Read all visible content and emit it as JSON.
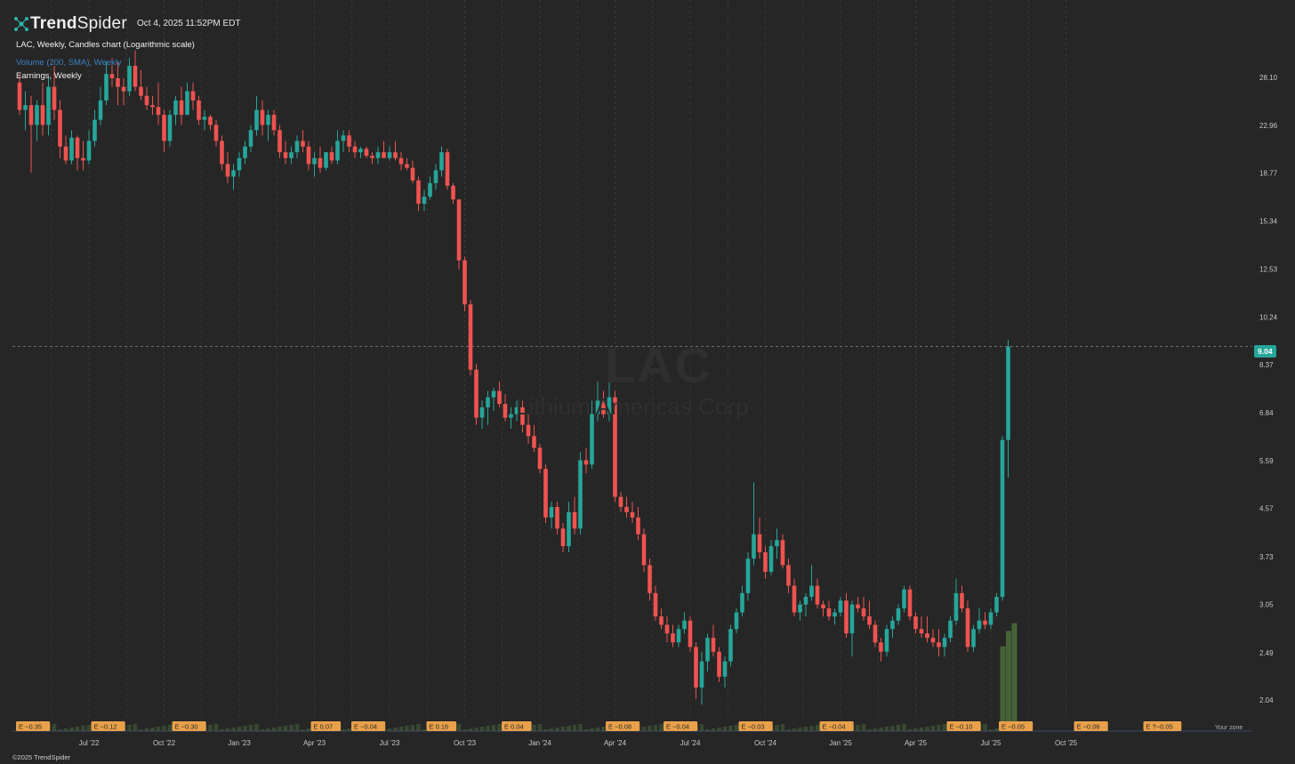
{
  "header": {
    "brand_bold": "Trend",
    "brand_light": "Spider",
    "timestamp": "Oct 4, 2025 11:52PM EDT"
  },
  "legend": {
    "main": "LAC, Weekly, Candles chart (Logarithmic scale)",
    "volume": "Volume (200, SMA), Weekly",
    "earnings": "Earnings, Weekly"
  },
  "watermark": {
    "symbol": "LAC",
    "name": "Lithium Americas Corp"
  },
  "copyright": "©2025 TrendSpider",
  "current_price": "9.04",
  "zone_text": "Your zone",
  "colors": {
    "background": "#262626",
    "up": "#26a69a",
    "down": "#ef5350",
    "grid": "#5a4632",
    "axis_text": "#c8c8c8",
    "earnings_badge": "#e8a04a",
    "volume": "#4a6a3a"
  },
  "chart_data": {
    "type": "candlestick",
    "title": "LAC, Weekly, Candles chart (Logarithmic scale)",
    "y_scale": "log",
    "y_ticks": [
      2.04,
      2.49,
      3.05,
      3.73,
      4.57,
      5.59,
      6.84,
      8.37,
      10.24,
      12.53,
      15.34,
      18.77,
      22.96,
      28.1
    ],
    "ylim": [
      1.9,
      33
    ],
    "x_ticks": [
      "Jul '22",
      "Oct '22",
      "Jan '23",
      "Apr '23",
      "Jul '23",
      "Oct '23",
      "Jan '24",
      "Apr '24",
      "Jul '24",
      "Oct '24",
      "Jan '25",
      "Apr '25",
      "Jul '25",
      "Oct '25"
    ],
    "x_tick_week_index": [
      12,
      25,
      38,
      51,
      64,
      77,
      90,
      103,
      116,
      129,
      142,
      155,
      168,
      181
    ],
    "candles": [
      [
        27.5,
        28.5,
        24.0,
        24.5
      ],
      [
        24.5,
        26.5,
        22.5,
        25.0
      ],
      [
        25.0,
        26.0,
        18.8,
        23.0
      ],
      [
        23.0,
        25.5,
        21.5,
        25.0
      ],
      [
        25.0,
        27.5,
        22.0,
        23.0
      ],
      [
        23.0,
        28.0,
        22.0,
        27.0
      ],
      [
        27.0,
        29.5,
        23.5,
        24.5
      ],
      [
        24.5,
        25.5,
        20.0,
        21.0
      ],
      [
        21.0,
        22.0,
        19.5,
        19.8
      ],
      [
        19.8,
        22.5,
        19.5,
        21.8
      ],
      [
        21.8,
        22.0,
        19.0,
        20.0
      ],
      [
        20.0,
        21.5,
        19.0,
        19.8
      ],
      [
        19.8,
        22.5,
        19.5,
        21.5
      ],
      [
        21.5,
        24.5,
        21.0,
        23.5
      ],
      [
        23.5,
        27.0,
        23.0,
        25.5
      ],
      [
        25.5,
        30.0,
        25.0,
        28.5
      ],
      [
        28.5,
        30.5,
        27.0,
        28.0
      ],
      [
        28.0,
        30.0,
        25.0,
        27.0
      ],
      [
        27.0,
        28.0,
        25.0,
        26.5
      ],
      [
        26.5,
        30.5,
        26.0,
        29.5
      ],
      [
        29.5,
        31.5,
        26.5,
        27.0
      ],
      [
        27.0,
        29.0,
        25.5,
        26.0
      ],
      [
        26.0,
        27.0,
        24.5,
        25.0
      ],
      [
        25.0,
        26.0,
        24.0,
        24.8
      ],
      [
        24.8,
        27.5,
        23.0,
        24.0
      ],
      [
        24.0,
        24.5,
        20.5,
        21.5
      ],
      [
        21.5,
        24.5,
        21.0,
        24.0
      ],
      [
        24.0,
        26.0,
        23.0,
        25.5
      ],
      [
        25.5,
        27.0,
        23.0,
        24.0
      ],
      [
        24.0,
        27.5,
        24.0,
        26.5
      ],
      [
        26.5,
        27.5,
        24.5,
        25.5
      ],
      [
        25.5,
        26.0,
        23.0,
        23.5
      ],
      [
        23.5,
        24.5,
        22.5,
        23.8
      ],
      [
        23.8,
        24.0,
        22.5,
        23.0
      ],
      [
        23.0,
        23.5,
        21.0,
        21.5
      ],
      [
        21.5,
        22.0,
        19.0,
        19.5
      ],
      [
        19.5,
        20.5,
        18.0,
        18.5
      ],
      [
        18.5,
        19.5,
        17.5,
        19.0
      ],
      [
        19.0,
        20.5,
        18.5,
        20.0
      ],
      [
        20.0,
        21.5,
        19.5,
        21.0
      ],
      [
        21.0,
        23.0,
        20.5,
        22.5
      ],
      [
        22.5,
        26.0,
        22.0,
        24.5
      ],
      [
        24.5,
        25.5,
        22.0,
        23.0
      ],
      [
        23.0,
        24.5,
        21.5,
        24.0
      ],
      [
        24.0,
        24.5,
        22.0,
        22.5
      ],
      [
        22.5,
        23.0,
        20.0,
        20.5
      ],
      [
        20.5,
        21.5,
        19.5,
        20.0
      ],
      [
        20.0,
        21.0,
        19.5,
        20.5
      ],
      [
        20.5,
        22.0,
        20.0,
        21.5
      ],
      [
        21.5,
        22.5,
        20.5,
        21.0
      ],
      [
        21.0,
        21.5,
        19.0,
        19.5
      ],
      [
        19.5,
        20.5,
        18.5,
        20.0
      ],
      [
        20.0,
        21.0,
        18.8,
        19.2
      ],
      [
        19.2,
        20.5,
        19.0,
        20.5
      ],
      [
        20.5,
        21.0,
        19.5,
        19.8
      ],
      [
        19.8,
        22.5,
        19.5,
        21.5
      ],
      [
        21.5,
        22.5,
        20.5,
        22.0
      ],
      [
        22.0,
        22.5,
        20.5,
        21.0
      ],
      [
        21.0,
        21.5,
        20.0,
        20.5
      ],
      [
        20.5,
        21.0,
        20.0,
        20.8
      ],
      [
        20.8,
        21.0,
        20.0,
        20.2
      ],
      [
        20.2,
        20.5,
        19.5,
        20.0
      ],
      [
        20.0,
        21.0,
        19.5,
        20.5
      ],
      [
        20.5,
        21.5,
        20.0,
        20.0
      ],
      [
        20.0,
        21.0,
        19.8,
        20.5
      ],
      [
        20.5,
        21.5,
        19.8,
        20.0
      ],
      [
        20.0,
        20.5,
        19.0,
        19.5
      ],
      [
        19.5,
        20.0,
        19.0,
        19.2
      ],
      [
        19.2,
        19.8,
        18.0,
        18.2
      ],
      [
        18.2,
        18.5,
        16.0,
        16.5
      ],
      [
        16.5,
        17.5,
        16.0,
        17.0
      ],
      [
        17.0,
        18.5,
        16.8,
        18.0
      ],
      [
        18.0,
        19.5,
        17.5,
        19.0
      ],
      [
        19.0,
        21.0,
        18.5,
        20.5
      ],
      [
        20.5,
        20.8,
        17.5,
        17.8
      ],
      [
        17.8,
        18.0,
        16.5,
        16.8
      ],
      [
        16.8,
        16.8,
        12.5,
        13.0
      ],
      [
        13.0,
        13.2,
        10.5,
        10.8
      ],
      [
        10.8,
        11.0,
        8.0,
        8.2
      ],
      [
        8.2,
        8.4,
        6.5,
        6.7
      ],
      [
        6.7,
        7.2,
        6.4,
        7.0
      ],
      [
        7.0,
        7.5,
        6.5,
        7.3
      ],
      [
        7.3,
        7.6,
        6.9,
        7.5
      ],
      [
        7.5,
        7.8,
        7.0,
        7.1
      ],
      [
        7.1,
        7.4,
        6.6,
        6.7
      ],
      [
        6.7,
        7.0,
        6.4,
        6.8
      ],
      [
        6.8,
        7.2,
        6.6,
        7.0
      ],
      [
        7.0,
        7.2,
        6.3,
        6.5
      ],
      [
        6.5,
        6.8,
        6.0,
        6.2
      ],
      [
        6.2,
        6.5,
        5.8,
        5.9
      ],
      [
        5.9,
        6.0,
        5.3,
        5.4
      ],
      [
        5.4,
        5.5,
        4.3,
        4.4
      ],
      [
        4.4,
        4.7,
        4.2,
        4.6
      ],
      [
        4.6,
        4.7,
        4.1,
        4.2
      ],
      [
        4.2,
        4.3,
        3.8,
        3.9
      ],
      [
        3.9,
        4.7,
        3.8,
        4.5
      ],
      [
        4.5,
        4.8,
        4.1,
        4.2
      ],
      [
        4.2,
        5.8,
        4.1,
        5.6
      ],
      [
        5.6,
        5.9,
        5.3,
        5.5
      ],
      [
        5.5,
        7.2,
        5.4,
        6.8
      ],
      [
        6.8,
        7.8,
        6.6,
        7.2
      ],
      [
        7.2,
        7.5,
        6.7,
        6.8
      ],
      [
        6.8,
        7.9,
        6.6,
        7.3
      ],
      [
        7.3,
        7.5,
        4.7,
        4.8
      ],
      [
        4.8,
        4.9,
        4.5,
        4.6
      ],
      [
        4.6,
        4.8,
        4.4,
        4.5
      ],
      [
        4.5,
        4.7,
        4.3,
        4.4
      ],
      [
        4.4,
        4.6,
        4.0,
        4.1
      ],
      [
        4.1,
        4.2,
        3.5,
        3.6
      ],
      [
        3.6,
        3.7,
        3.1,
        3.2
      ],
      [
        3.2,
        3.3,
        2.85,
        2.9
      ],
      [
        2.9,
        3.0,
        2.75,
        2.8
      ],
      [
        2.8,
        2.9,
        2.6,
        2.7
      ],
      [
        2.7,
        2.8,
        2.55,
        2.6
      ],
      [
        2.6,
        2.8,
        2.55,
        2.75
      ],
      [
        2.75,
        2.95,
        2.7,
        2.85
      ],
      [
        2.85,
        2.9,
        2.5,
        2.55
      ],
      [
        2.55,
        2.6,
        2.05,
        2.15
      ],
      [
        2.15,
        2.5,
        2.0,
        2.4
      ],
      [
        2.4,
        2.7,
        2.3,
        2.65
      ],
      [
        2.65,
        2.8,
        2.45,
        2.5
      ],
      [
        2.5,
        2.55,
        2.2,
        2.25
      ],
      [
        2.25,
        2.45,
        2.15,
        2.4
      ],
      [
        2.4,
        2.8,
        2.35,
        2.75
      ],
      [
        2.75,
        3.0,
        2.7,
        2.95
      ],
      [
        2.95,
        3.3,
        2.9,
        3.2
      ],
      [
        3.2,
        3.8,
        3.1,
        3.7
      ],
      [
        3.7,
        5.1,
        3.6,
        4.1
      ],
      [
        4.1,
        4.4,
        3.7,
        3.8
      ],
      [
        3.8,
        3.9,
        3.4,
        3.5
      ],
      [
        3.5,
        4.0,
        3.45,
        3.9
      ],
      [
        3.9,
        4.2,
        3.7,
        4.0
      ],
      [
        4.0,
        4.1,
        3.55,
        3.6
      ],
      [
        3.6,
        3.7,
        3.2,
        3.3
      ],
      [
        3.3,
        3.4,
        2.9,
        2.95
      ],
      [
        2.95,
        3.1,
        2.85,
        3.05
      ],
      [
        3.05,
        3.2,
        2.9,
        3.15
      ],
      [
        3.15,
        3.6,
        3.1,
        3.3
      ],
      [
        3.3,
        3.4,
        3.0,
        3.05
      ],
      [
        3.05,
        3.1,
        2.9,
        3.0
      ],
      [
        3.0,
        3.1,
        2.85,
        2.9
      ],
      [
        2.9,
        3.0,
        2.8,
        2.95
      ],
      [
        2.95,
        3.15,
        2.9,
        3.1
      ],
      [
        3.1,
        3.2,
        2.65,
        2.7
      ],
      [
        2.7,
        3.1,
        2.45,
        3.05
      ],
      [
        3.05,
        3.15,
        2.95,
        3.0
      ],
      [
        3.0,
        3.15,
        2.85,
        2.9
      ],
      [
        2.9,
        3.1,
        2.75,
        2.8
      ],
      [
        2.8,
        2.85,
        2.55,
        2.6
      ],
      [
        2.6,
        2.65,
        2.4,
        2.5
      ],
      [
        2.5,
        2.8,
        2.45,
        2.75
      ],
      [
        2.75,
        2.9,
        2.65,
        2.85
      ],
      [
        2.85,
        3.05,
        2.8,
        3.0
      ],
      [
        3.0,
        3.3,
        2.95,
        3.25
      ],
      [
        3.25,
        3.3,
        2.85,
        2.9
      ],
      [
        2.9,
        2.95,
        2.7,
        2.75
      ],
      [
        2.75,
        2.9,
        2.65,
        2.7
      ],
      [
        2.7,
        2.9,
        2.6,
        2.65
      ],
      [
        2.65,
        2.75,
        2.55,
        2.6
      ],
      [
        2.6,
        2.75,
        2.45,
        2.55
      ],
      [
        2.55,
        2.7,
        2.45,
        2.65
      ],
      [
        2.65,
        2.9,
        2.6,
        2.85
      ],
      [
        2.85,
        3.4,
        2.8,
        3.2
      ],
      [
        3.2,
        3.3,
        2.95,
        3.0
      ],
      [
        3.0,
        3.1,
        2.5,
        2.55
      ],
      [
        2.55,
        2.8,
        2.5,
        2.75
      ],
      [
        2.75,
        3.0,
        2.7,
        2.85
      ],
      [
        2.85,
        2.95,
        2.75,
        2.8
      ],
      [
        2.8,
        3.0,
        2.75,
        2.95
      ],
      [
        2.95,
        3.2,
        2.9,
        3.15
      ],
      [
        3.15,
        6.2,
        3.1,
        6.1
      ],
      [
        6.1,
        9.3,
        5.2,
        9.04
      ]
    ],
    "volume_values": [
      2.2,
      2.6,
      2.8
    ],
    "earnings": [
      {
        "label": "E −0.35",
        "week": 0
      },
      {
        "label": "E −0.12",
        "week": 13
      },
      {
        "label": "E −0.30",
        "week": 27
      },
      {
        "label": "E 0.07",
        "week": 51
      },
      {
        "label": "E −0.04",
        "week": 58
      },
      {
        "label": "E 0.16",
        "week": 71
      },
      {
        "label": "E 0.04",
        "week": 84
      },
      {
        "label": "E −0.08",
        "week": 102
      },
      {
        "label": "E −0.04",
        "week": 112
      },
      {
        "label": "E −0.03",
        "week": 125
      },
      {
        "label": "E −0.04",
        "week": 139
      },
      {
        "label": "E −0.10",
        "week": 161
      },
      {
        "label": "E −0.05",
        "week": 170
      },
      {
        "label": "E −0.06",
        "week": 183
      },
      {
        "label": "E ?−0.05",
        "week": 195
      }
    ]
  }
}
